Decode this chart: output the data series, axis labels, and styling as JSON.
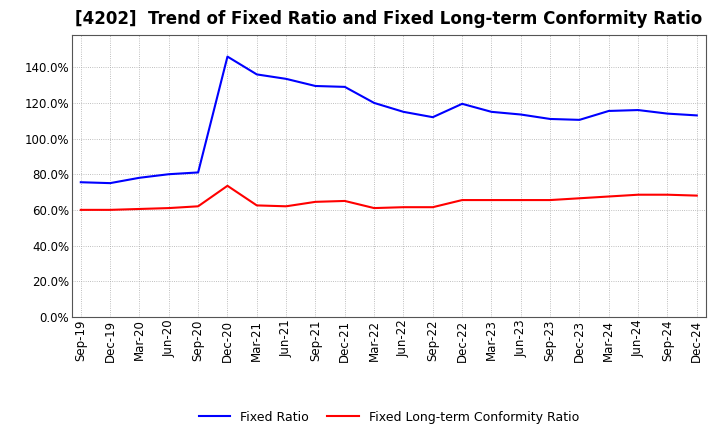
{
  "title": "[4202]  Trend of Fixed Ratio and Fixed Long-term Conformity Ratio",
  "x_labels": [
    "Sep-19",
    "Dec-19",
    "Mar-20",
    "Jun-20",
    "Sep-20",
    "Dec-20",
    "Mar-21",
    "Jun-21",
    "Sep-21",
    "Dec-21",
    "Mar-22",
    "Jun-22",
    "Sep-22",
    "Dec-22",
    "Mar-23",
    "Jun-23",
    "Sep-23",
    "Dec-23",
    "Mar-24",
    "Jun-24",
    "Sep-24",
    "Dec-24"
  ],
  "fixed_ratio": [
    75.5,
    75.0,
    78.0,
    80.0,
    81.0,
    146.0,
    136.0,
    133.5,
    129.5,
    129.0,
    120.0,
    115.0,
    112.0,
    119.5,
    115.0,
    113.5,
    111.0,
    110.5,
    115.5,
    116.0,
    114.0,
    113.0
  ],
  "fixed_lt_ratio": [
    60.0,
    60.0,
    60.5,
    61.0,
    62.0,
    73.5,
    62.5,
    62.0,
    64.5,
    65.0,
    61.0,
    61.5,
    61.5,
    65.5,
    65.5,
    65.5,
    65.5,
    66.5,
    67.5,
    68.5,
    68.5,
    68.0
  ],
  "fixed_ratio_color": "#0000FF",
  "fixed_lt_ratio_color": "#FF0000",
  "ylim": [
    0,
    150
  ],
  "yticks": [
    0,
    20,
    40,
    60,
    80,
    100,
    120,
    140
  ],
  "background_color": "#FFFFFF",
  "plot_bg_color": "#FFFFFF",
  "grid_color": "#AAAAAA",
  "title_fontsize": 12,
  "axis_fontsize": 8.5,
  "legend_labels": [
    "Fixed Ratio",
    "Fixed Long-term Conformity Ratio"
  ]
}
